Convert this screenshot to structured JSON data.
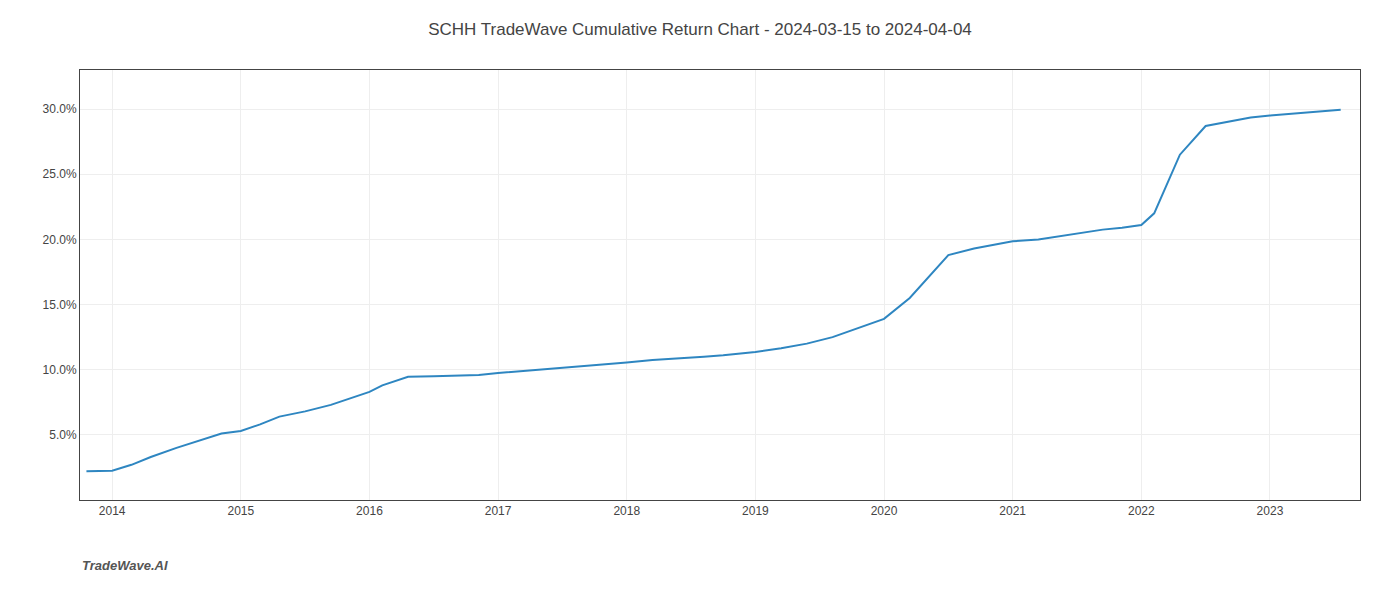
{
  "chart_data": {
    "type": "line",
    "title": "SCHH TradeWave Cumulative Return Chart - 2024-03-15 to 2024-04-04",
    "annotations": [
      "TradeWave.AI"
    ],
    "color": "#2e86c1",
    "grid": true,
    "x": [
      2013.8,
      2014.0,
      2014.15,
      2014.3,
      2014.5,
      2014.7,
      2014.85,
      2015.0,
      2015.15,
      2015.3,
      2015.5,
      2015.7,
      2015.85,
      2016.0,
      2016.1,
      2016.25,
      2016.3,
      2016.5,
      2016.7,
      2016.85,
      2017.0,
      2017.2,
      2017.4,
      2017.6,
      2017.8,
      2017.9,
      2018.0,
      2018.2,
      2018.4,
      2018.6,
      2018.75,
      2018.85,
      2019.0,
      2019.2,
      2019.4,
      2019.6,
      2019.8,
      2019.9,
      2020.0,
      2020.2,
      2020.5,
      2020.7,
      2020.9,
      2021.0,
      2021.2,
      2021.4,
      2021.5,
      2021.6,
      2021.7,
      2021.85,
      2022.0,
      2022.1,
      2022.3,
      2022.5,
      2022.7,
      2022.85,
      2023.0,
      2023.2,
      2023.4,
      2023.55
    ],
    "values": [
      2.2,
      2.25,
      2.7,
      3.3,
      4.0,
      4.6,
      5.1,
      5.3,
      5.8,
      6.4,
      6.8,
      7.3,
      7.8,
      8.3,
      8.8,
      9.3,
      9.45,
      9.5,
      9.55,
      9.6,
      9.75,
      9.9,
      10.05,
      10.2,
      10.35,
      10.45,
      10.55,
      10.75,
      10.9,
      11.0,
      11.1,
      11.2,
      11.35,
      11.65,
      12.0,
      12.5,
      13.2,
      13.6,
      13.9,
      15.5,
      18.8,
      19.3,
      19.65,
      19.85,
      20.0,
      20.3,
      20.5,
      20.65,
      20.75,
      20.9,
      21.1,
      22.0,
      26.5,
      28.7,
      29.1,
      29.35,
      29.5,
      29.65,
      29.8,
      29.95
    ],
    "xlim": [
      2013.75,
      2023.7
    ],
    "xticks": [
      2014,
      2015,
      2016,
      2017,
      2018,
      2019,
      2020,
      2021,
      2022,
      2023
    ],
    "ylim": [
      0,
      33
    ],
    "yticks": [
      {
        "value": 5.0,
        "label": "5.0%"
      },
      {
        "value": 10.0,
        "label": "10.0%"
      },
      {
        "value": 15.0,
        "label": "15.0%"
      },
      {
        "value": 20.0,
        "label": "20.0%"
      },
      {
        "value": 25.0,
        "label": "25.0%"
      },
      {
        "value": 30.0,
        "label": "30.0%"
      }
    ]
  }
}
